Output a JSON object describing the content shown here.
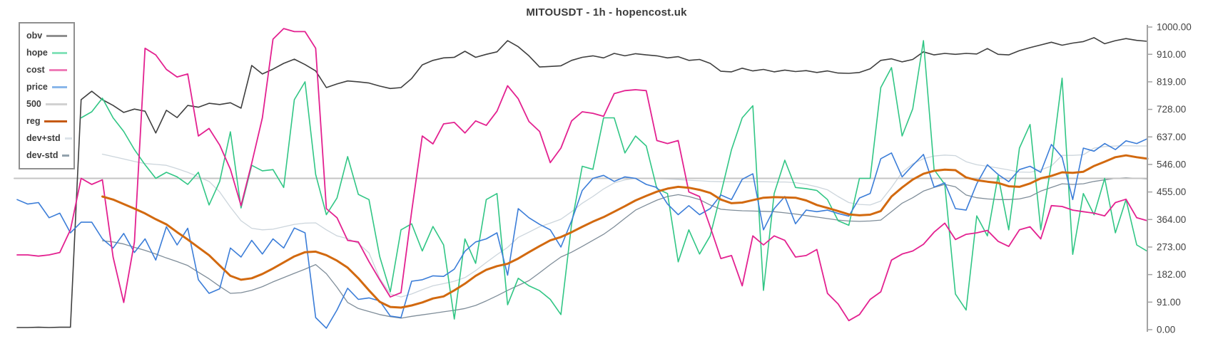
{
  "title": "MITOUSDT - 1h - hopencost.uk",
  "legend": {
    "items": [
      {
        "label": "obv",
        "swatch_color": "#8f8f8f"
      },
      {
        "label": "hope",
        "swatch_color": "#85e2ba"
      },
      {
        "label": "cost",
        "swatch_color": "#ef7db8"
      },
      {
        "label": "price",
        "swatch_color": "#8ab7ea"
      },
      {
        "label": "500",
        "swatch_color": "#d2d2d2"
      },
      {
        "label": "reg",
        "swatch_color": "#c55a11"
      },
      {
        "label": "dev+std",
        "swatch_color": "#dce3e9"
      },
      {
        "label": "dev-std",
        "swatch_color": "#93a2ad"
      }
    ]
  },
  "y_axis": {
    "tick_labels": [
      "1000.00",
      "910.00",
      "819.00",
      "728.00",
      "637.00",
      "546.00",
      "455.00",
      "364.00",
      "273.00",
      "182.00",
      "91.00",
      "0.00"
    ],
    "line_color": "#a3a3a3",
    "tick_color": "#a3a3a3",
    "label_color": "#434343"
  },
  "chart_data": {
    "type": "line",
    "title": "MITOUSDT - 1h - hopencost.uk",
    "xlabel": "",
    "ylabel": "",
    "x_unit": "1h bars (x axis unlabeled in image)",
    "ylim": [
      0,
      1000
    ],
    "n_points": 107,
    "grid": false,
    "legend_position": "top-left",
    "draw_order": [
      "dev+std",
      "dev-std",
      "500",
      "obv",
      "hope",
      "price",
      "cost",
      "reg"
    ],
    "series": [
      {
        "name": "obv",
        "color": "#3f3f3f",
        "width": 1.6,
        "values": [
          7,
          7,
          8,
          7,
          8,
          8,
          760,
          788,
          760,
          741,
          718,
          729,
          722,
          650,
          725,
          701,
          741,
          735,
          748,
          744,
          750,
          732,
          873,
          845,
          861,
          880,
          894,
          876,
          855,
          800,
          812,
          822,
          819,
          815,
          805,
          797,
          800,
          830,
          875,
          890,
          898,
          900,
          920,
          900,
          910,
          918,
          955,
          935,
          905,
          868,
          870,
          872,
          890,
          900,
          905,
          898,
          913,
          905,
          912,
          908,
          905,
          898,
          902,
          890,
          893,
          880,
          854,
          852,
          864,
          855,
          860,
          852,
          858,
          853,
          856,
          850,
          855,
          848,
          847,
          850,
          862,
          890,
          895,
          885,
          893,
          918,
          908,
          913,
          910,
          913,
          911,
          929,
          910,
          908,
          922,
          932,
          941,
          950,
          940,
          947,
          952,
          965,
          945,
          955,
          962,
          956,
          953
        ]
      },
      {
        "name": "hope",
        "color": "#31c685",
        "width": 1.6,
        "values": [
          null,
          null,
          null,
          null,
          null,
          null,
          700,
          720,
          765,
          700,
          655,
          595,
          545,
          500,
          520,
          505,
          480,
          520,
          412,
          490,
          654,
          402,
          543,
          525,
          529,
          470,
          760,
          819,
          513,
          380,
          435,
          572,
          447,
          430,
          242,
          125,
          330,
          350,
          260,
          341,
          280,
          35,
          300,
          219,
          430,
          450,
          82,
          170,
          145,
          129,
          100,
          50,
          350,
          540,
          530,
          700,
          700,
          584,
          640,
          607,
          466,
          450,
          224,
          330,
          250,
          310,
          450,
          595,
          700,
          740,
          130,
          450,
          560,
          470,
          466,
          460,
          430,
          360,
          345,
          500,
          500,
          800,
          866,
          640,
          730,
          955,
          529,
          480,
          118,
          65,
          376,
          310,
          509,
          330,
          600,
          678,
          330,
          550,
          831,
          249,
          450,
          380,
          500,
          320,
          430,
          280,
          259
        ]
      },
      {
        "name": "cost",
        "color": "#e32190",
        "width": 1.8,
        "values": [
          247,
          247,
          243,
          247,
          255,
          330,
          500,
          480,
          495,
          240,
          90,
          290,
          930,
          908,
          860,
          835,
          845,
          640,
          665,
          610,
          530,
          410,
          550,
          700,
          960,
          995,
          985,
          985,
          930,
          400,
          370,
          295,
          290,
          225,
          165,
          108,
          122,
          390,
          640,
          614,
          680,
          685,
          650,
          690,
          675,
          722,
          806,
          763,
          688,
          655,
          552,
          600,
          690,
          720,
          715,
          705,
          780,
          790,
          793,
          790,
          625,
          615,
          625,
          455,
          440,
          340,
          235,
          245,
          145,
          310,
          280,
          310,
          295,
          240,
          245,
          265,
          120,
          85,
          30,
          50,
          100,
          125,
          230,
          250,
          260,
          282,
          322,
          352,
          298,
          315,
          320,
          328,
          292,
          275,
          330,
          340,
          300,
          410,
          407,
          395,
          390,
          385,
          376,
          420,
          431,
          370,
          360
        ]
      },
      {
        "name": "price",
        "color": "#3b7dd8",
        "width": 1.6,
        "values": [
          430,
          415,
          420,
          370,
          385,
          320,
          355,
          355,
          300,
          270,
          318,
          255,
          300,
          230,
          340,
          280,
          335,
          165,
          120,
          135,
          270,
          240,
          295,
          250,
          300,
          270,
          336,
          320,
          40,
          5,
          65,
          137,
          100,
          105,
          95,
          45,
          40,
          160,
          165,
          178,
          176,
          200,
          259,
          290,
          300,
          320,
          180,
          400,
          370,
          348,
          330,
          273,
          360,
          460,
          500,
          510,
          490,
          505,
          500,
          480,
          470,
          415,
          380,
          410,
          380,
          400,
          445,
          430,
          497,
          515,
          330,
          400,
          440,
          350,
          395,
          390,
          395,
          384,
          375,
          435,
          450,
          565,
          584,
          505,
          543,
          579,
          471,
          485,
          400,
          395,
          482,
          545,
          513,
          489,
          529,
          540,
          520,
          612,
          570,
          430,
          600,
          590,
          615,
          595,
          624,
          615,
          631
        ]
      },
      {
        "name": "500",
        "color": "#c4c4c4",
        "width": 2,
        "constant": 500
      },
      {
        "name": "reg",
        "color": "#d2690f",
        "width": 3,
        "values": [
          null,
          null,
          null,
          null,
          null,
          null,
          null,
          null,
          440,
          430,
          415,
          400,
          384,
          365,
          348,
          322,
          298,
          272,
          246,
          212,
          178,
          165,
          170,
          184,
          202,
          222,
          242,
          256,
          258,
          246,
          228,
          205,
          170,
          130,
          92,
          75,
          73,
          80,
          90,
          103,
          110,
          130,
          152,
          178,
          198,
          210,
          218,
          235,
          256,
          276,
          295,
          306,
          322,
          340,
          357,
          372,
          390,
          408,
          427,
          442,
          456,
          466,
          472,
          469,
          462,
          452,
          430,
          418,
          420,
          428,
          436,
          438,
          437,
          436,
          427,
          412,
          402,
          392,
          381,
          378,
          380,
          392,
          440,
          470,
          496,
          515,
          525,
          529,
          527,
          503,
          494,
          489,
          485,
          474,
          472,
          483,
          500,
          508,
          520,
          518,
          522,
          541,
          555,
          570,
          576,
          570,
          565
        ]
      },
      {
        "name": "dev+std",
        "color": "#ccd5dc",
        "width": 1.3,
        "values": [
          null,
          null,
          null,
          null,
          null,
          null,
          null,
          null,
          580,
          572,
          564,
          556,
          549,
          546,
          543,
          532,
          520,
          505,
          490,
          455,
          405,
          360,
          335,
          330,
          332,
          340,
          348,
          352,
          353,
          330,
          310,
          301,
          285,
          254,
          170,
          118,
          108,
          118,
          132,
          145,
          152,
          160,
          172,
          195,
          222,
          248,
          272,
          305,
          322,
          340,
          352,
          365,
          390,
          418,
          440,
          465,
          485,
          495,
          500,
          500,
          499,
          498,
          496,
          494,
          492,
          490,
          489,
          489,
          489,
          489,
          489,
          488,
          488,
          486,
          480,
          472,
          462,
          440,
          420,
          414,
          412,
          425,
          470,
          520,
          548,
          565,
          574,
          577,
          575,
          555,
          545,
          540,
          534,
          528,
          521,
          520,
          528,
          541,
          576,
          576,
          578,
          600,
          605,
          607,
          608,
          607,
          607
        ]
      },
      {
        "name": "dev-std",
        "color": "#7f8d99",
        "width": 1.3,
        "values": [
          null,
          null,
          null,
          null,
          null,
          null,
          null,
          null,
          294,
          290,
          283,
          272,
          262,
          250,
          237,
          225,
          212,
          190,
          168,
          143,
          120,
          122,
          130,
          142,
          158,
          172,
          186,
          200,
          215,
          185,
          140,
          90,
          70,
          60,
          50,
          43,
          38,
          44,
          49,
          54,
          59,
          64,
          70,
          80,
          95,
          112,
          130,
          146,
          162,
          188,
          215,
          240,
          256,
          275,
          295,
          315,
          340,
          368,
          395,
          412,
          428,
          440,
          446,
          440,
          430,
          412,
          398,
          395,
          393,
          392,
          391,
          390,
          386,
          382,
          377,
          372,
          367,
          362,
          359,
          358,
          359,
          362,
          390,
          418,
          436,
          458,
          470,
          480,
          472,
          445,
          436,
          432,
          430,
          430,
          432,
          440,
          458,
          470,
          482,
          480,
          482,
          490,
          495,
          500,
          502,
          500,
          498
        ]
      }
    ]
  }
}
